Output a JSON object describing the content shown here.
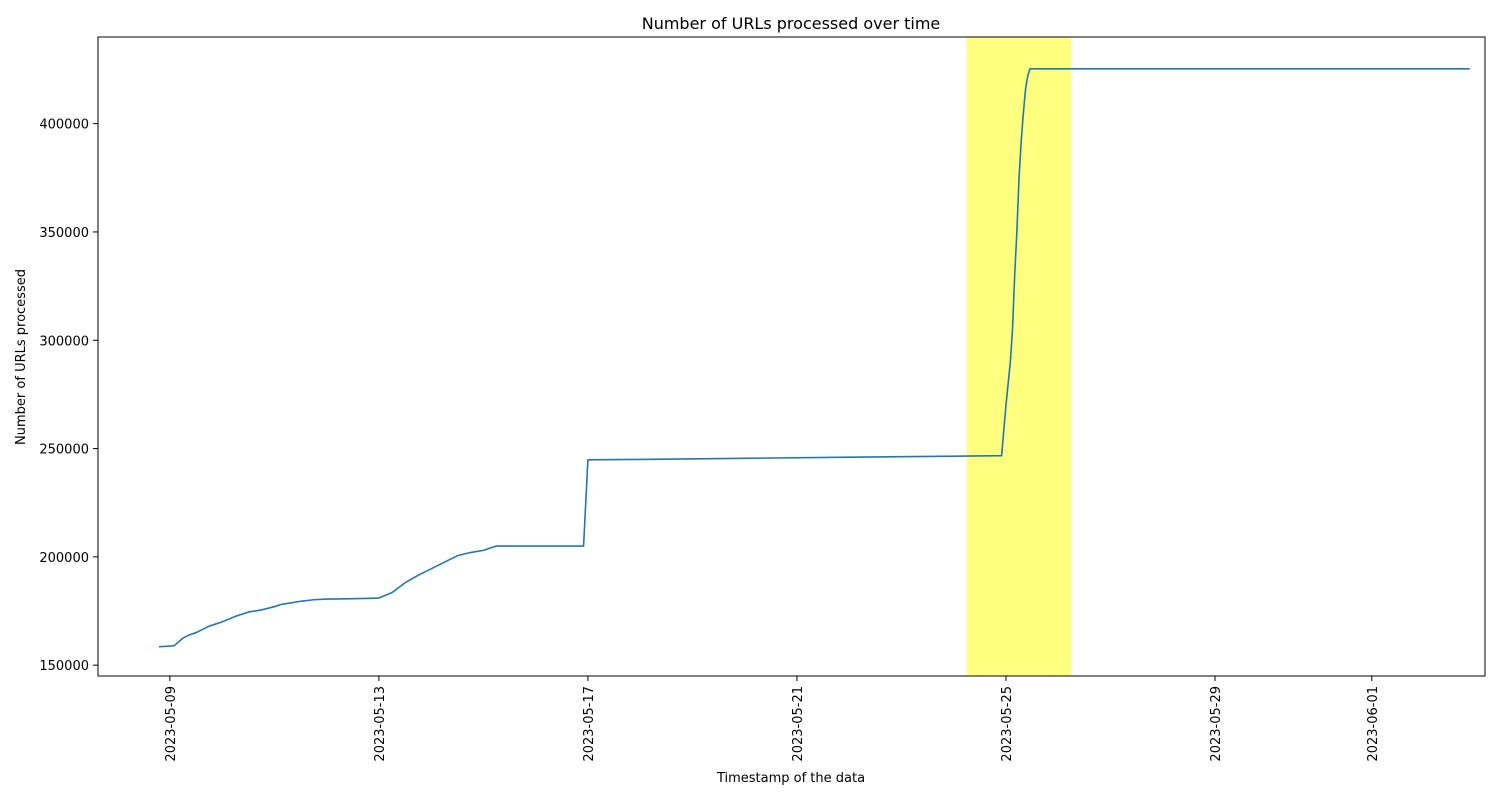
{
  "colors": {
    "line": "#1f77b4",
    "highlight": "#ffff7f",
    "axis": "#000000",
    "background": "#ffffff"
  },
  "chart_data": {
    "type": "line",
    "title": "Number of URLs processed over time",
    "xlabel": "Timestamp of the data",
    "ylabel": "Number of URLs processed",
    "grid": false,
    "legend": "none",
    "x_is_date": true,
    "xlim": [
      "2023-05-07T15:00",
      "2023-06-03T04:00"
    ],
    "ylim": [
      145000,
      440000
    ],
    "x_ticks": [
      "2023-05-09",
      "2023-05-13",
      "2023-05-17",
      "2023-05-21",
      "2023-05-25",
      "2023-05-29",
      "2023-06-01"
    ],
    "y_ticks": [
      150000,
      200000,
      250000,
      300000,
      350000,
      400000
    ],
    "y_tick_labels": [
      "150000",
      "200000",
      "250000",
      "300000",
      "350000",
      "400000"
    ],
    "highlight_span": [
      "2023-05-24T06:00",
      "2023-05-26T06:00"
    ],
    "series": [
      {
        "x": [
          "2023-05-08T19:00",
          "2023-05-09T00:00",
          "2023-05-09T02:00",
          "2023-05-09T06:00",
          "2023-05-09T09:00",
          "2023-05-09T12:00",
          "2023-05-09T18:00",
          "2023-05-10T00:00",
          "2023-05-10T06:00",
          "2023-05-10T12:00",
          "2023-05-10T18:00",
          "2023-05-11T00:00",
          "2023-05-11T03:00",
          "2023-05-11T06:00",
          "2023-05-11T12:00",
          "2023-05-11T18:00",
          "2023-05-12T00:00",
          "2023-05-12T06:00",
          "2023-05-12T12:00",
          "2023-05-12T18:00",
          "2023-05-13T00:00",
          "2023-05-13T06:00",
          "2023-05-13T12:00",
          "2023-05-13T18:00",
          "2023-05-14T00:00",
          "2023-05-14T06:00",
          "2023-05-14T12:00",
          "2023-05-14T18:00",
          "2023-05-15T00:00",
          "2023-05-15T06:00",
          "2023-05-15T12:00",
          "2023-05-15T18:00",
          "2023-05-16T00:00",
          "2023-05-16T06:00",
          "2023-05-16T12:00",
          "2023-05-16T22:00",
          "2023-05-17T00:00",
          "2023-05-18T00:00",
          "2023-05-20T00:00",
          "2023-05-22T00:00",
          "2023-05-24T00:00",
          "2023-05-24T22:00",
          "2023-05-25T00:00",
          "2023-05-25T02:00",
          "2023-05-25T03:00",
          "2023-05-25T04:00",
          "2023-05-25T05:00",
          "2023-05-25T06:00",
          "2023-05-25T07:00",
          "2023-05-25T08:00",
          "2023-05-25T09:00",
          "2023-05-25T10:00",
          "2023-05-25T11:00",
          "2023-05-26T00:00",
          "2023-05-28T00:00",
          "2023-05-30T00:00",
          "2023-06-01T00:00",
          "2023-06-02T00:00",
          "2023-06-02T21:00"
        ],
        "y": [
          158500,
          158800,
          159000,
          162500,
          164000,
          165000,
          168000,
          170000,
          172500,
          174500,
          175500,
          177000,
          178000,
          178500,
          179500,
          180200,
          180500,
          180600,
          180700,
          180800,
          181000,
          183500,
          188000,
          191500,
          194500,
          197500,
          200500,
          202000,
          203000,
          205000,
          205000,
          205000,
          205000,
          205000,
          205000,
          205000,
          244800,
          245000,
          245500,
          246000,
          246500,
          246700,
          270000,
          290000,
          305000,
          330000,
          350000,
          375000,
          392000,
          405000,
          416000,
          422000,
          425300,
          425300,
          425300,
          425300,
          425300,
          425300,
          425300
        ]
      }
    ]
  }
}
